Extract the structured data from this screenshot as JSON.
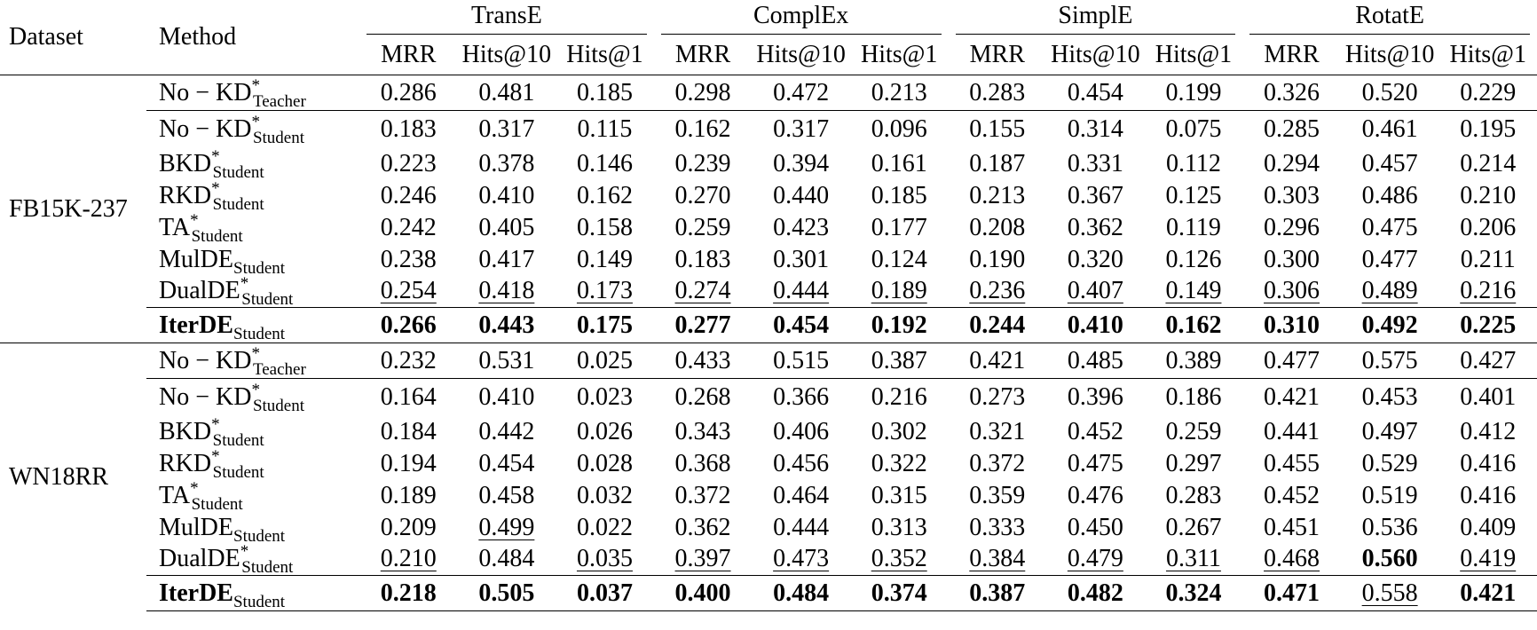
{
  "table": {
    "header": {
      "dataset": "Dataset",
      "method": "Method",
      "models": [
        {
          "name": "TransE",
          "metrics": [
            "MRR",
            "Hits@10",
            "Hits@1"
          ]
        },
        {
          "name": "ComplEx",
          "metrics": [
            "MRR",
            "Hits@10",
            "Hits@1"
          ]
        },
        {
          "name": "SimplE",
          "metrics": [
            "MRR",
            "Hits@10",
            "Hits@1"
          ]
        },
        {
          "name": "RotatE",
          "metrics": [
            "MRR",
            "Hits@10",
            "Hits@1"
          ]
        }
      ]
    },
    "groups": [
      {
        "dataset": "FB15K-237",
        "rows": [
          {
            "method": {
              "name": "No − KD",
              "sup": "*",
              "sub": "Teacher"
            },
            "cells": [
              "0.286",
              "0.481",
              "0.185",
              "0.298",
              "0.472",
              "0.213",
              "0.283",
              "0.454",
              "0.199",
              "0.326",
              "0.520",
              "0.229"
            ],
            "bold": [],
            "underline": []
          },
          {
            "method": {
              "name": "No − KD",
              "sup": "*",
              "sub": "Student"
            },
            "cells": [
              "0.183",
              "0.317",
              "0.115",
              "0.162",
              "0.317",
              "0.096",
              "0.155",
              "0.314",
              "0.075",
              "0.285",
              "0.461",
              "0.195"
            ],
            "bold": [],
            "underline": []
          },
          {
            "method": {
              "name": "BKD",
              "sup": "*",
              "sub": "Student"
            },
            "cells": [
              "0.223",
              "0.378",
              "0.146",
              "0.239",
              "0.394",
              "0.161",
              "0.187",
              "0.331",
              "0.112",
              "0.294",
              "0.457",
              "0.214"
            ],
            "bold": [],
            "underline": []
          },
          {
            "method": {
              "name": "RKD",
              "sup": "*",
              "sub": "Student"
            },
            "cells": [
              "0.246",
              "0.410",
              "0.162",
              "0.270",
              "0.440",
              "0.185",
              "0.213",
              "0.367",
              "0.125",
              "0.303",
              "0.486",
              "0.210"
            ],
            "bold": [],
            "underline": []
          },
          {
            "method": {
              "name": "TA",
              "sup": "*",
              "sub": "Student"
            },
            "cells": [
              "0.242",
              "0.405",
              "0.158",
              "0.259",
              "0.423",
              "0.177",
              "0.208",
              "0.362",
              "0.119",
              "0.296",
              "0.475",
              "0.206"
            ],
            "bold": [],
            "underline": []
          },
          {
            "method": {
              "name": "MulDE",
              "sub": "Student"
            },
            "cells": [
              "0.238",
              "0.417",
              "0.149",
              "0.183",
              "0.301",
              "0.124",
              "0.190",
              "0.320",
              "0.126",
              "0.300",
              "0.477",
              "0.211"
            ],
            "bold": [],
            "underline": []
          },
          {
            "method": {
              "name": "DualDE",
              "sup": "*",
              "sub": "Student"
            },
            "cells": [
              "0.254",
              "0.418",
              "0.173",
              "0.274",
              "0.444",
              "0.189",
              "0.236",
              "0.407",
              "0.149",
              "0.306",
              "0.489",
              "0.216"
            ],
            "bold": [],
            "underline": [
              0,
              1,
              2,
              3,
              4,
              5,
              6,
              7,
              8,
              9,
              10,
              11
            ]
          },
          {
            "method": {
              "name": "IterDE",
              "sub": "Student",
              "bold": true
            },
            "cells": [
              "0.266",
              "0.443",
              "0.175",
              "0.277",
              "0.454",
              "0.192",
              "0.244",
              "0.410",
              "0.162",
              "0.310",
              "0.492",
              "0.225"
            ],
            "bold": [
              0,
              1,
              2,
              3,
              4,
              5,
              6,
              7,
              8,
              9,
              10,
              11
            ],
            "underline": []
          }
        ]
      },
      {
        "dataset": "WN18RR",
        "rows": [
          {
            "method": {
              "name": "No − KD",
              "sup": "*",
              "sub": "Teacher"
            },
            "cells": [
              "0.232",
              "0.531",
              "0.025",
              "0.433",
              "0.515",
              "0.387",
              "0.421",
              "0.485",
              "0.389",
              "0.477",
              "0.575",
              "0.427"
            ],
            "bold": [],
            "underline": []
          },
          {
            "method": {
              "name": "No − KD",
              "sup": "*",
              "sub": "Student"
            },
            "cells": [
              "0.164",
              "0.410",
              "0.023",
              "0.268",
              "0.366",
              "0.216",
              "0.273",
              "0.396",
              "0.186",
              "0.421",
              "0.453",
              "0.401"
            ],
            "bold": [],
            "underline": []
          },
          {
            "method": {
              "name": "BKD",
              "sup": "*",
              "sub": "Student"
            },
            "cells": [
              "0.184",
              "0.442",
              "0.026",
              "0.343",
              "0.406",
              "0.302",
              "0.321",
              "0.452",
              "0.259",
              "0.441",
              "0.497",
              "0.412"
            ],
            "bold": [],
            "underline": []
          },
          {
            "method": {
              "name": "RKD",
              "sup": "*",
              "sub": "Student"
            },
            "cells": [
              "0.194",
              "0.454",
              "0.028",
              "0.368",
              "0.456",
              "0.322",
              "0.372",
              "0.475",
              "0.297",
              "0.455",
              "0.529",
              "0.416"
            ],
            "bold": [],
            "underline": []
          },
          {
            "method": {
              "name": "TA",
              "sup": "*",
              "sub": "Student"
            },
            "cells": [
              "0.189",
              "0.458",
              "0.032",
              "0.372",
              "0.464",
              "0.315",
              "0.359",
              "0.476",
              "0.283",
              "0.452",
              "0.519",
              "0.416"
            ],
            "bold": [],
            "underline": []
          },
          {
            "method": {
              "name": "MulDE",
              "sub": "Student"
            },
            "cells": [
              "0.209",
              "0.499",
              "0.022",
              "0.362",
              "0.444",
              "0.313",
              "0.333",
              "0.450",
              "0.267",
              "0.451",
              "0.536",
              "0.409"
            ],
            "bold": [],
            "underline": [
              1
            ]
          },
          {
            "method": {
              "name": "DualDE",
              "sup": "*",
              "sub": "Student"
            },
            "cells": [
              "0.210",
              "0.484",
              "0.035",
              "0.397",
              "0.473",
              "0.352",
              "0.384",
              "0.479",
              "0.311",
              "0.468",
              "0.560",
              "0.419"
            ],
            "bold": [
              10
            ],
            "underline": [
              0,
              2,
              3,
              4,
              5,
              6,
              7,
              8,
              9,
              11
            ]
          },
          {
            "method": {
              "name": "IterDE",
              "sub": "Student",
              "bold": true
            },
            "cells": [
              "0.218",
              "0.505",
              "0.037",
              "0.400",
              "0.484",
              "0.374",
              "0.387",
              "0.482",
              "0.324",
              "0.471",
              "0.558",
              "0.421"
            ],
            "bold": [
              0,
              1,
              2,
              3,
              4,
              5,
              6,
              7,
              8,
              9,
              11
            ],
            "underline": [
              10
            ]
          }
        ]
      }
    ]
  }
}
